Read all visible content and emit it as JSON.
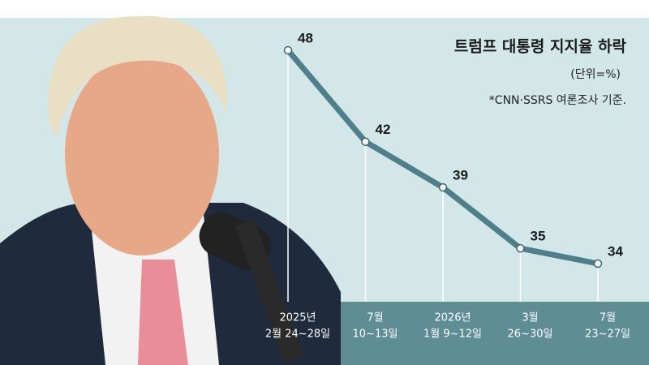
{
  "chart_data": {
    "type": "line",
    "title": "트럼프 대통령 지지율 하락",
    "subtitle": "(단위=%)",
    "note": "*CNN·SSRS 여론조사 기준.",
    "categories": [
      [
        "2025년",
        "2월 24~28일"
      ],
      [
        "7월",
        "10~13일"
      ],
      [
        "2026년",
        "1월 9~12일"
      ],
      [
        "3월",
        "26~30일"
      ],
      [
        "7월",
        "23~27일"
      ]
    ],
    "values": [
      48,
      42,
      39,
      35,
      34
    ],
    "color": "#4f7f8a"
  }
}
